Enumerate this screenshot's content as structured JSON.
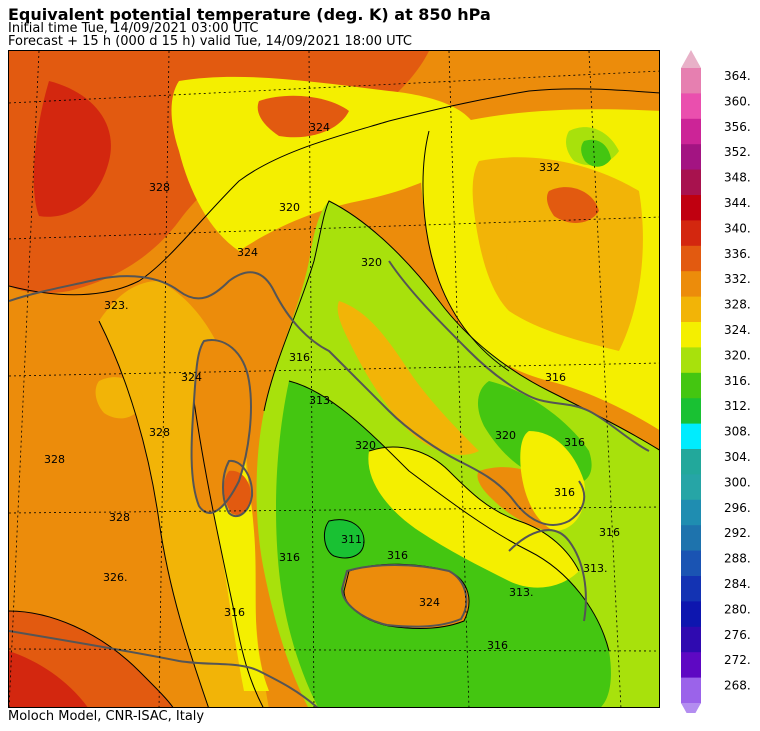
{
  "header": {
    "title": "Equivalent potential temperature (deg. K) at 850 hPa",
    "initial_time": "Initial time  Tue, 14/09/2021  03:00 UTC",
    "forecast": "Forecast  +  15 h  (000 d 15 h)  valid Tue, 14/09/2021 18:00 UTC"
  },
  "footer": {
    "credit": "Moloch Model, CNR-ISAC, Italy"
  },
  "legend": {
    "levels": [
      "364.",
      "360.",
      "356.",
      "352.",
      "348.",
      "344.",
      "340.",
      "336.",
      "332.",
      "328.",
      "324.",
      "320.",
      "316.",
      "312.",
      "308.",
      "304.",
      "300.",
      "296.",
      "292.",
      "288.",
      "284.",
      "280.",
      "276.",
      "272.",
      "268."
    ],
    "colors": [
      "#e67fb0",
      "#ea4fae",
      "#cc2497",
      "#a31482",
      "#a8124e",
      "#c00010",
      "#d3270f",
      "#e25a10",
      "#ec8c0b",
      "#f2b407",
      "#f4ef00",
      "#a8e10c",
      "#44c611",
      "#19c133",
      "#00ecfe",
      "#22a89b",
      "#26a5a6",
      "#1f8db1",
      "#1e73ad",
      "#1a54b3",
      "#1333b3",
      "#0d16af",
      "#2f0ab0",
      "#5e08c3",
      "#9b63ea"
    ],
    "top_arrow_color": "#e8b1c8",
    "bottom_arrow_color": "#b38df0"
  },
  "map": {
    "contour_labels": [
      "328",
      "323.",
      "324",
      "320",
      "320",
      "316",
      "313.",
      "320",
      "316",
      "316",
      "311.",
      "313.",
      "316",
      "326.",
      "328",
      "328",
      "328",
      "320",
      "316",
      "316",
      "332",
      "324",
      "316",
      "324",
      "324",
      "316",
      "313.",
      "316"
    ]
  }
}
